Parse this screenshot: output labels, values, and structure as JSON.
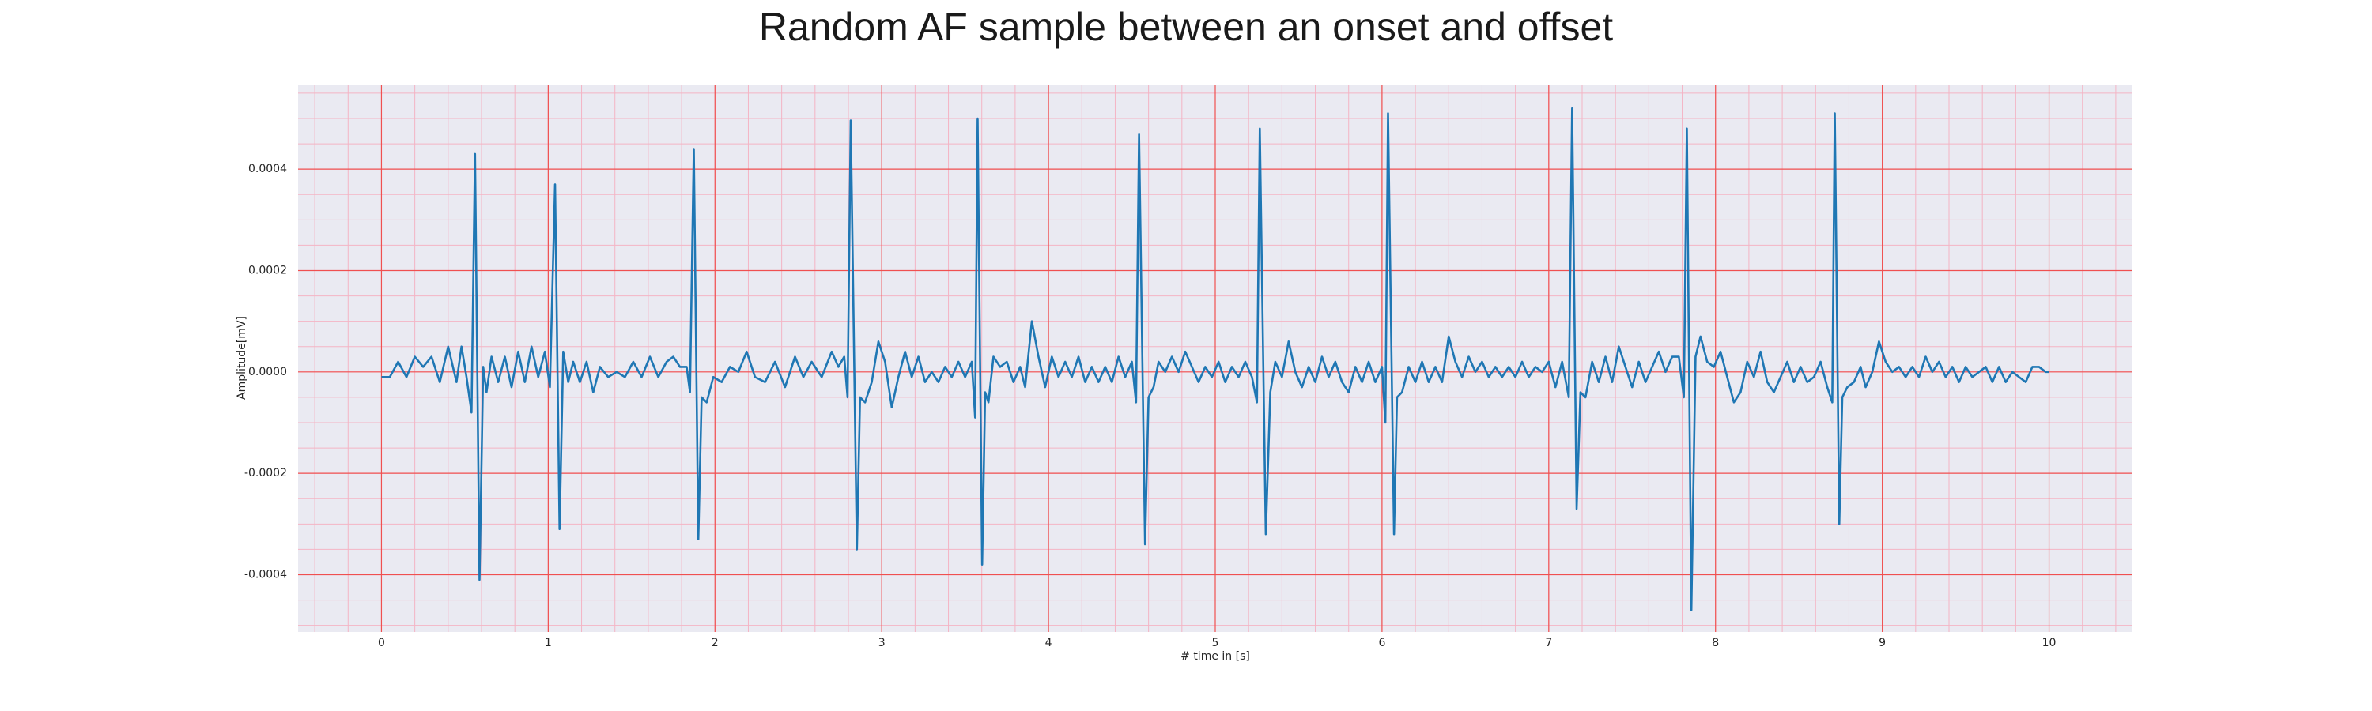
{
  "chart_data": {
    "type": "line",
    "title": "Random AF sample between an onset and offset",
    "x_label": "# time in [s]",
    "y_label": "Amplitude[mV]",
    "color": "#1f77b4",
    "grid": true,
    "minor_grid": true,
    "xlim": [
      -0.5,
      10.5
    ],
    "ylim": [
      -0.000513,
      0.000567
    ],
    "xticks": [
      0,
      1,
      2,
      3,
      4,
      5,
      6,
      7,
      8,
      9,
      10
    ],
    "yticks": [
      -0.0004,
      -0.0002,
      {
        "value": 0,
        "label": "0.0000"
      },
      0.0002,
      0.0004
    ],
    "x": [
      0,
      0.05,
      0.1,
      0.15,
      0.2,
      0.25,
      0.3,
      0.35,
      0.4,
      0.45,
      0.48,
      0.51,
      0.54,
      0.561,
      0.588,
      0.61,
      0.63,
      0.66,
      0.7,
      0.74,
      0.78,
      0.82,
      0.86,
      0.9,
      0.94,
      0.98,
      1.01,
      1.041,
      1.068,
      1.09,
      1.12,
      1.15,
      1.19,
      1.23,
      1.27,
      1.31,
      1.36,
      1.41,
      1.46,
      1.51,
      1.56,
      1.61,
      1.66,
      1.71,
      1.75,
      1.79,
      1.83,
      1.85,
      1.873,
      1.9,
      1.92,
      1.95,
      1.99,
      2.04,
      2.09,
      2.14,
      2.19,
      2.24,
      2.3,
      2.36,
      2.42,
      2.48,
      2.53,
      2.58,
      2.64,
      2.7,
      2.74,
      2.775,
      2.795,
      2.814,
      2.851,
      2.87,
      2.9,
      2.94,
      2.98,
      3.02,
      3.06,
      3.1,
      3.14,
      3.18,
      3.22,
      3.26,
      3.3,
      3.34,
      3.38,
      3.42,
      3.46,
      3.5,
      3.54,
      3.56,
      3.575,
      3.602,
      3.62,
      3.64,
      3.67,
      3.71,
      3.75,
      3.79,
      3.83,
      3.86,
      3.9,
      3.94,
      3.98,
      4.02,
      4.06,
      4.1,
      4.14,
      4.18,
      4.22,
      4.26,
      4.3,
      4.34,
      4.38,
      4.42,
      4.46,
      4.5,
      4.525,
      4.543,
      4.579,
      4.6,
      4.63,
      4.66,
      4.7,
      4.74,
      4.78,
      4.82,
      4.86,
      4.9,
      4.94,
      4.98,
      5.02,
      5.06,
      5.1,
      5.14,
      5.18,
      5.22,
      5.25,
      5.267,
      5.303,
      5.33,
      5.36,
      5.4,
      5.44,
      5.48,
      5.52,
      5.56,
      5.6,
      5.64,
      5.68,
      5.72,
      5.76,
      5.8,
      5.84,
      5.88,
      5.92,
      5.96,
      6.0,
      6.02,
      6.036,
      6.072,
      6.09,
      6.12,
      6.16,
      6.2,
      6.24,
      6.28,
      6.32,
      6.36,
      6.4,
      6.44,
      6.48,
      6.52,
      6.56,
      6.6,
      6.64,
      6.68,
      6.72,
      6.76,
      6.8,
      6.84,
      6.88,
      6.92,
      6.96,
      7.0,
      7.04,
      7.08,
      7.12,
      7.14,
      7.167,
      7.19,
      7.22,
      7.26,
      7.3,
      7.34,
      7.38,
      7.42,
      7.46,
      7.5,
      7.54,
      7.58,
      7.62,
      7.66,
      7.7,
      7.74,
      7.78,
      7.81,
      7.828,
      7.855,
      7.88,
      7.91,
      7.95,
      7.99,
      8.03,
      8.07,
      8.11,
      8.15,
      8.19,
      8.23,
      8.27,
      8.31,
      8.35,
      8.39,
      8.43,
      8.47,
      8.51,
      8.55,
      8.59,
      8.63,
      8.67,
      8.7,
      8.715,
      8.742,
      8.76,
      8.79,
      8.83,
      8.87,
      8.9,
      8.94,
      8.98,
      9.02,
      9.06,
      9.1,
      9.14,
      9.18,
      9.22,
      9.26,
      9.3,
      9.34,
      9.38,
      9.42,
      9.46,
      9.5,
      9.54,
      9.58,
      9.62,
      9.66,
      9.7,
      9.74,
      9.78,
      9.82,
      9.86,
      9.9,
      9.94,
      9.98,
      10
    ],
    "values": [
      -1e-05,
      -1e-05,
      2e-05,
      -1e-05,
      3e-05,
      1e-05,
      3e-05,
      -2e-05,
      5e-05,
      -2e-05,
      5e-05,
      -1e-05,
      -8e-05,
      0.00043,
      -0.00041,
      1e-05,
      -4e-05,
      3e-05,
      -2e-05,
      3e-05,
      -3e-05,
      4e-05,
      -2e-05,
      5e-05,
      -1e-05,
      4e-05,
      -3e-05,
      0.00037,
      -0.00031,
      4e-05,
      -2e-05,
      2e-05,
      -2e-05,
      2e-05,
      -4e-05,
      1e-05,
      -1e-05,
      0,
      -1e-05,
      2e-05,
      -1e-05,
      3e-05,
      -1e-05,
      2e-05,
      3e-05,
      1e-05,
      1e-05,
      -4e-05,
      0.00044,
      -0.00033,
      -5e-05,
      -6e-05,
      -1e-05,
      -2e-05,
      1e-05,
      0,
      4e-05,
      -1e-05,
      -2e-05,
      2e-05,
      -3e-05,
      3e-05,
      -1e-05,
      2e-05,
      -1e-05,
      4e-05,
      1e-05,
      3e-05,
      -5e-05,
      0.000496,
      -0.00035,
      -5e-05,
      -6e-05,
      -2e-05,
      6e-05,
      2e-05,
      -7e-05,
      -1e-05,
      4e-05,
      -1e-05,
      3e-05,
      -2e-05,
      0,
      -2e-05,
      1e-05,
      -1e-05,
      2e-05,
      -1e-05,
      2e-05,
      -9e-05,
      0.0005,
      -0.00038,
      -4e-05,
      -6e-05,
      3e-05,
      1e-05,
      2e-05,
      -2e-05,
      1e-05,
      -3e-05,
      0.0001,
      3e-05,
      -3e-05,
      3e-05,
      -1e-05,
      2e-05,
      -1e-05,
      3e-05,
      -2e-05,
      1e-05,
      -2e-05,
      1e-05,
      -2e-05,
      3e-05,
      -1e-05,
      2e-05,
      -6e-05,
      0.00047,
      -0.00034,
      -5e-05,
      -3e-05,
      2e-05,
      0,
      3e-05,
      0,
      4e-05,
      1e-05,
      -2e-05,
      1e-05,
      -1e-05,
      2e-05,
      -2e-05,
      1e-05,
      -1e-05,
      2e-05,
      -1e-05,
      -6e-05,
      0.00048,
      -0.00032,
      -4e-05,
      2e-05,
      -1e-05,
      6e-05,
      0,
      -3e-05,
      1e-05,
      -2e-05,
      3e-05,
      -1e-05,
      2e-05,
      -2e-05,
      -4e-05,
      1e-05,
      -2e-05,
      2e-05,
      -2e-05,
      1e-05,
      -0.0001,
      0.00051,
      -0.00032,
      -5e-05,
      -4e-05,
      1e-05,
      -2e-05,
      2e-05,
      -2e-05,
      1e-05,
      -2e-05,
      7e-05,
      2e-05,
      -1e-05,
      3e-05,
      0,
      2e-05,
      -1e-05,
      1e-05,
      -1e-05,
      1e-05,
      -1e-05,
      2e-05,
      -1e-05,
      1e-05,
      0,
      2e-05,
      -3e-05,
      2e-05,
      -5e-05,
      0.00052,
      -0.00027,
      -4e-05,
      -5e-05,
      2e-05,
      -2e-05,
      3e-05,
      -2e-05,
      5e-05,
      1e-05,
      -3e-05,
      2e-05,
      -2e-05,
      1e-05,
      4e-05,
      0,
      3e-05,
      3e-05,
      -5e-05,
      0.00048,
      -0.00047,
      3e-05,
      7e-05,
      2e-05,
      1e-05,
      4e-05,
      -1e-05,
      -6e-05,
      -4e-05,
      2e-05,
      -1e-05,
      4e-05,
      -2e-05,
      -4e-05,
      -1e-05,
      2e-05,
      -2e-05,
      1e-05,
      -2e-05,
      -1e-05,
      2e-05,
      -3e-05,
      -6e-05,
      0.00051,
      -0.0003,
      -5e-05,
      -3e-05,
      -2e-05,
      1e-05,
      -3e-05,
      0,
      6e-05,
      2e-05,
      0,
      1e-05,
      -1e-05,
      1e-05,
      -1e-05,
      3e-05,
      0,
      2e-05,
      -1e-05,
      1e-05,
      -2e-05,
      1e-05,
      -1e-05,
      0,
      1e-05,
      -2e-05,
      1e-05,
      -2e-05,
      0,
      -1e-05,
      -2e-05,
      1e-05,
      1e-05,
      0,
      0
    ]
  }
}
